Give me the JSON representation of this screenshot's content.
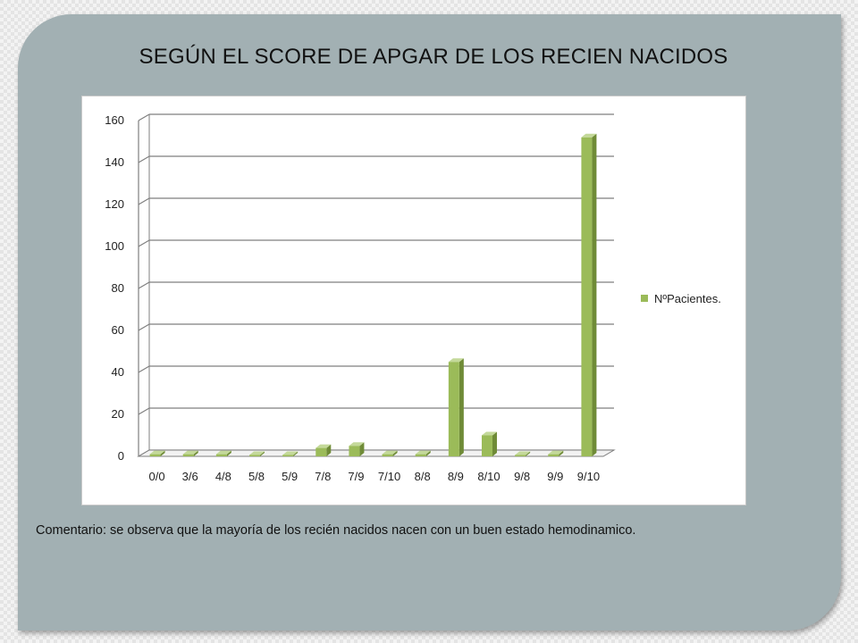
{
  "slide": {
    "title": "SEGÚN EL SCORE DE APGAR DE LOS RECIEN NACIDOS",
    "comment": "Comentario: se observa que la mayoría de los recién nacidos nacen con un buen estado hemodinamico."
  },
  "colors": {
    "panel": "#a2b0b3",
    "bar_front": "#9bbb59",
    "bar_side": "#6f8b37",
    "bar_top": "#c4d99a",
    "grid": "#7f7f7f"
  },
  "chart_data": {
    "type": "bar",
    "title": "",
    "xlabel": "",
    "ylabel": "",
    "categories": [
      "0/0",
      "3/6",
      "4/8",
      "5/8",
      "5/9",
      "7/8",
      "7/9",
      "7/10",
      "8/8",
      "8/9",
      "8/10",
      "9/8",
      "9/9",
      "9/10"
    ],
    "series": [
      {
        "name": "NºPacientes.",
        "values": [
          1,
          1,
          1,
          0,
          0,
          4,
          5,
          1,
          1,
          45,
          10,
          0,
          1,
          152
        ]
      }
    ],
    "ylim": [
      0,
      160
    ],
    "yticks": [
      0,
      20,
      40,
      60,
      80,
      100,
      120,
      140,
      160
    ],
    "grid": true,
    "legend_position": "right",
    "style": "3d-column"
  }
}
